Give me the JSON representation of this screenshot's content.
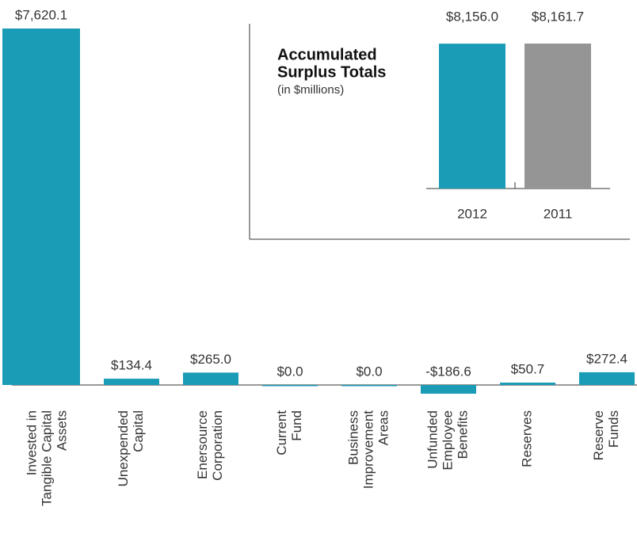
{
  "chart_data": [
    {
      "type": "bar",
      "categories": [
        [
          "Invested in",
          "Tangible Capital",
          "Assets"
        ],
        [
          "Unexpended",
          "Capital"
        ],
        [
          "Enersource",
          "Corporation"
        ],
        [
          "Current",
          "Fund"
        ],
        [
          "Business",
          "Improvement",
          "Areas"
        ],
        [
          "Unfunded",
          "Employee",
          "Benefits"
        ],
        [
          "Reserves"
        ],
        [
          "Reserve",
          "Funds"
        ]
      ],
      "values": [
        7620.1,
        134.4,
        265.0,
        0.0,
        0.0,
        -186.6,
        50.7,
        272.4
      ],
      "value_labels": [
        "$7,620.1",
        "$134.4",
        "$265.0",
        "$0.0",
        "$0.0",
        "-$186.6",
        "$50.7",
        "$272.4"
      ],
      "color": "#1a9bb6"
    },
    {
      "type": "bar",
      "title": [
        "Accumulated",
        "Surplus Totals"
      ],
      "subtitle": "(in $millions)",
      "categories": [
        "2012",
        "2011"
      ],
      "values": [
        8156.0,
        8161.7
      ],
      "value_labels": [
        "$8,156.0",
        "$8,161.7"
      ],
      "colors": [
        "#1a9bb6",
        "#959595"
      ]
    }
  ]
}
